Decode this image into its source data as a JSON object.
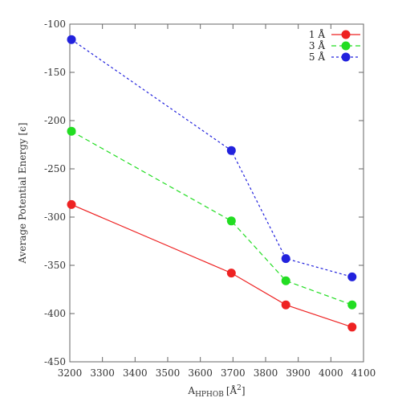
{
  "chart_data": {
    "type": "line",
    "title": "",
    "xlabel": "A",
    "xlabel_sub": "HPHOB",
    "xlabel_unit": "[Å",
    "xlabel_sup": "2",
    "xlabel_close": "]",
    "ylabel": "Average Potential Energy [ϵ]",
    "xlim": [
      3200,
      4100
    ],
    "ylim": [
      -450,
      -100
    ],
    "xticks": [
      3200,
      3300,
      3400,
      3500,
      3600,
      3700,
      3800,
      3900,
      4000,
      4100
    ],
    "yticks": [
      -100,
      -150,
      -200,
      -250,
      -300,
      -350,
      -400,
      -450
    ],
    "grid": false,
    "legend_position": "top-right",
    "x": [
      3205,
      3695,
      3862,
      4065
    ],
    "series": [
      {
        "name": "1 Å",
        "color": "#ee2222",
        "dash": "solid",
        "values": [
          -287,
          -358,
          -391,
          -414
        ]
      },
      {
        "name": "3 Å",
        "color": "#22dd22",
        "dash": "dashed",
        "values": [
          -211,
          -304,
          -366,
          -391
        ]
      },
      {
        "name": "5 Å",
        "color": "#2222dd",
        "dash": "dotted",
        "values": [
          -116,
          -231,
          -343,
          -362
        ]
      }
    ]
  }
}
